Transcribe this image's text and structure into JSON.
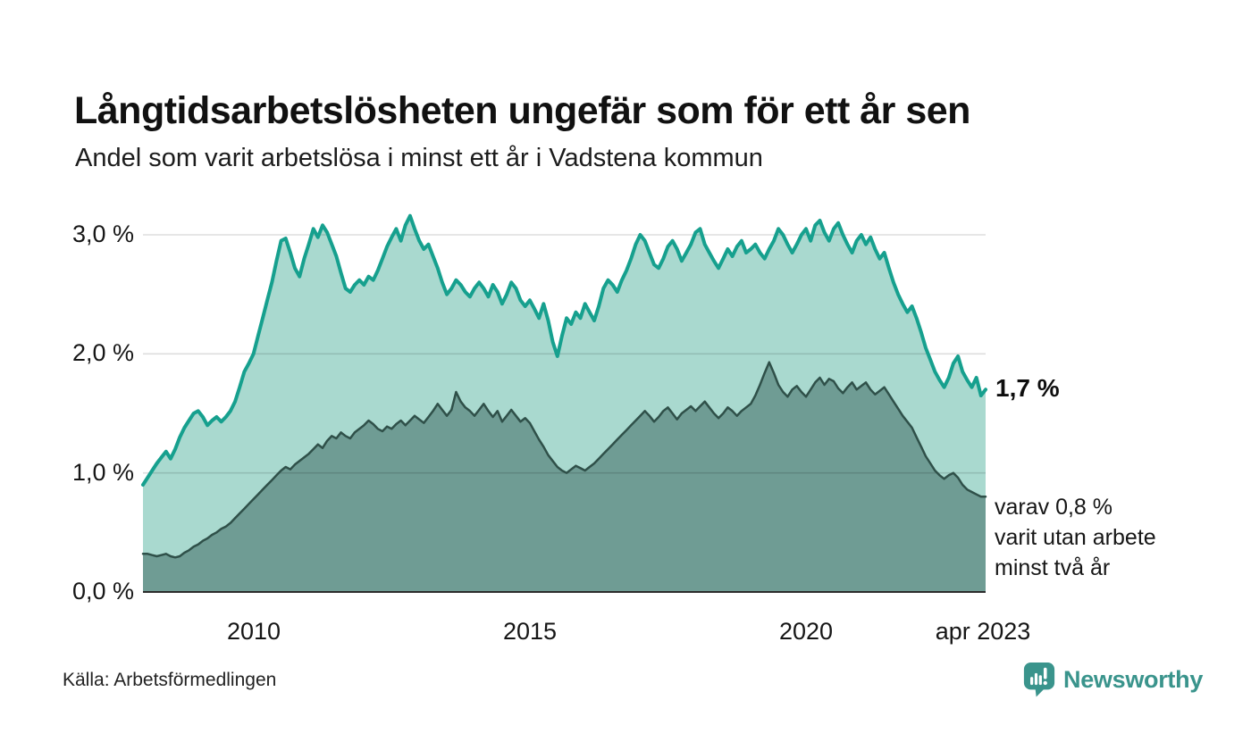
{
  "header": {
    "title": "Långtidsarbetslösheten ungefär som för ett år sen",
    "subtitle": "Andel som varit arbetslösa i minst ett år i Vadstena kommun"
  },
  "chart_data": {
    "type": "area",
    "title": "Andel som varit arbetslösa i minst ett år i Vadstena kommun",
    "x_start": "2008-01",
    "x_end": "2023-04",
    "frequency": "monthly",
    "ylim": [
      0,
      3.3
    ],
    "grid": true,
    "legend_position": "none",
    "yticks": [
      {
        "value": 0,
        "label": "0,0 %"
      },
      {
        "value": 1,
        "label": "1,0 %"
      },
      {
        "value": 2,
        "label": "2,0 %"
      },
      {
        "value": 3,
        "label": "3,0 %"
      }
    ],
    "xticks": [
      {
        "index": 24,
        "label": "2010"
      },
      {
        "index": 84,
        "label": "2015"
      },
      {
        "index": 144,
        "label": "2020"
      },
      {
        "index": 183,
        "label": "apr 2023"
      }
    ],
    "series": [
      {
        "name": "minst ett år",
        "latest_label": "1,7 %",
        "line_color": "#16a08e",
        "fill_color": "#a9d9cf",
        "line_width": 4,
        "values": [
          0.9,
          0.96,
          1.02,
          1.08,
          1.13,
          1.18,
          1.12,
          1.2,
          1.3,
          1.38,
          1.44,
          1.5,
          1.52,
          1.47,
          1.4,
          1.44,
          1.47,
          1.43,
          1.47,
          1.52,
          1.6,
          1.72,
          1.85,
          1.92,
          2.0,
          2.15,
          2.3,
          2.45,
          2.6,
          2.78,
          2.95,
          2.97,
          2.85,
          2.72,
          2.65,
          2.8,
          2.92,
          3.05,
          2.98,
          3.08,
          3.02,
          2.92,
          2.82,
          2.68,
          2.55,
          2.52,
          2.58,
          2.62,
          2.58,
          2.65,
          2.62,
          2.7,
          2.8,
          2.9,
          2.98,
          3.05,
          2.95,
          3.08,
          3.16,
          3.05,
          2.95,
          2.88,
          2.92,
          2.82,
          2.72,
          2.6,
          2.5,
          2.55,
          2.62,
          2.58,
          2.52,
          2.48,
          2.55,
          2.6,
          2.55,
          2.48,
          2.58,
          2.52,
          2.42,
          2.5,
          2.6,
          2.55,
          2.45,
          2.4,
          2.45,
          2.38,
          2.3,
          2.42,
          2.28,
          2.1,
          1.98,
          2.15,
          2.3,
          2.25,
          2.35,
          2.3,
          2.42,
          2.35,
          2.28,
          2.4,
          2.55,
          2.62,
          2.58,
          2.52,
          2.62,
          2.7,
          2.8,
          2.92,
          3.0,
          2.95,
          2.85,
          2.75,
          2.72,
          2.8,
          2.9,
          2.95,
          2.88,
          2.78,
          2.85,
          2.92,
          3.02,
          3.05,
          2.92,
          2.85,
          2.78,
          2.72,
          2.8,
          2.88,
          2.82,
          2.9,
          2.95,
          2.85,
          2.88,
          2.92,
          2.85,
          2.8,
          2.88,
          2.95,
          3.05,
          3.0,
          2.92,
          2.85,
          2.92,
          3.0,
          3.05,
          2.95,
          3.08,
          3.12,
          3.02,
          2.95,
          3.05,
          3.1,
          3.0,
          2.92,
          2.85,
          2.95,
          3.0,
          2.92,
          2.98,
          2.88,
          2.8,
          2.85,
          2.72,
          2.6,
          2.5,
          2.42,
          2.35,
          2.4,
          2.3,
          2.18,
          2.05,
          1.95,
          1.85,
          1.78,
          1.72,
          1.8,
          1.92,
          1.98,
          1.85,
          1.78,
          1.72,
          1.8,
          1.65,
          1.7
        ]
      },
      {
        "name": "minst två år",
        "latest_label": "0,8 %",
        "line_color": "#2f5049",
        "fill_color": "#6f9c94",
        "line_width": 2.5,
        "values": [
          0.32,
          0.32,
          0.31,
          0.3,
          0.31,
          0.32,
          0.3,
          0.29,
          0.3,
          0.33,
          0.35,
          0.38,
          0.4,
          0.43,
          0.45,
          0.48,
          0.5,
          0.53,
          0.55,
          0.58,
          0.62,
          0.66,
          0.7,
          0.74,
          0.78,
          0.82,
          0.86,
          0.9,
          0.94,
          0.98,
          1.02,
          1.05,
          1.03,
          1.07,
          1.1,
          1.13,
          1.16,
          1.2,
          1.24,
          1.21,
          1.27,
          1.31,
          1.29,
          1.34,
          1.31,
          1.29,
          1.34,
          1.37,
          1.4,
          1.44,
          1.41,
          1.37,
          1.35,
          1.39,
          1.37,
          1.41,
          1.44,
          1.4,
          1.44,
          1.48,
          1.45,
          1.42,
          1.47,
          1.52,
          1.58,
          1.53,
          1.48,
          1.53,
          1.68,
          1.6,
          1.55,
          1.52,
          1.48,
          1.53,
          1.58,
          1.52,
          1.47,
          1.52,
          1.43,
          1.48,
          1.53,
          1.48,
          1.43,
          1.46,
          1.42,
          1.35,
          1.28,
          1.22,
          1.15,
          1.1,
          1.05,
          1.02,
          1.0,
          1.03,
          1.06,
          1.04,
          1.02,
          1.05,
          1.08,
          1.12,
          1.16,
          1.2,
          1.24,
          1.28,
          1.32,
          1.36,
          1.4,
          1.44,
          1.48,
          1.52,
          1.48,
          1.43,
          1.47,
          1.52,
          1.55,
          1.5,
          1.45,
          1.5,
          1.53,
          1.56,
          1.52,
          1.56,
          1.6,
          1.55,
          1.5,
          1.46,
          1.5,
          1.55,
          1.52,
          1.48,
          1.52,
          1.55,
          1.58,
          1.65,
          1.74,
          1.84,
          1.93,
          1.84,
          1.74,
          1.68,
          1.64,
          1.7,
          1.73,
          1.68,
          1.64,
          1.7,
          1.76,
          1.8,
          1.74,
          1.79,
          1.77,
          1.71,
          1.67,
          1.72,
          1.76,
          1.7,
          1.73,
          1.76,
          1.7,
          1.66,
          1.69,
          1.72,
          1.66,
          1.6,
          1.54,
          1.48,
          1.43,
          1.38,
          1.3,
          1.22,
          1.14,
          1.08,
          1.02,
          0.98,
          0.95,
          0.98,
          1.0,
          0.96,
          0.9,
          0.86,
          0.84,
          0.82,
          0.8,
          0.8
        ]
      }
    ]
  },
  "annotations": {
    "latest_value_label": "1,7 %",
    "secondary_lines": [
      "varav 0,8 %",
      "varit utan arbete",
      "minst två år"
    ]
  },
  "footer": {
    "source": "Källa: Arbetsförmedlingen",
    "brand": "Newsworthy"
  },
  "colors": {
    "brand_teal": "#3a948c",
    "gridline": "#dcdcdc",
    "axis_line": "#2b2b2b",
    "background": "#ffffff"
  }
}
